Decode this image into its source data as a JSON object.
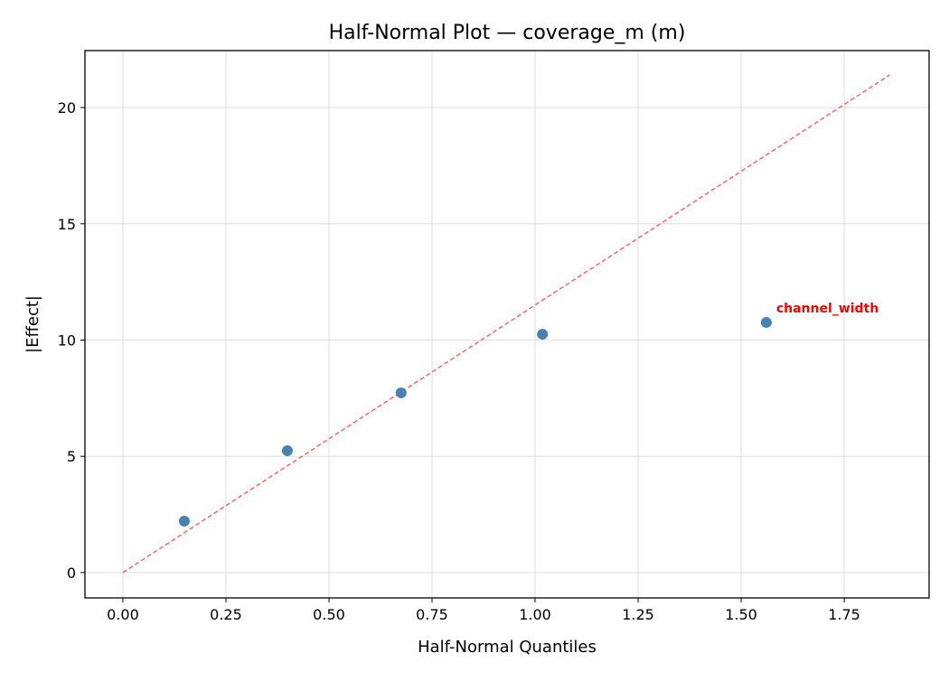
{
  "chart_data": {
    "type": "scatter",
    "title": "Half-Normal Plot — coverage_m (m)",
    "xlabel": "Half-Normal Quantiles",
    "ylabel": "|Effect|",
    "xlim": [
      -0.092,
      1.956
    ],
    "ylim": [
      -1.09,
      22.45
    ],
    "xticks": [
      0.0,
      0.25,
      0.5,
      0.75,
      1.0,
      1.25,
      1.5,
      1.75
    ],
    "xtick_labels": [
      "0.00",
      "0.25",
      "0.50",
      "0.75",
      "1.00",
      "1.25",
      "1.50",
      "1.75"
    ],
    "yticks": [
      0,
      5,
      10,
      15,
      20
    ],
    "ytick_labels": [
      "0",
      "5",
      "10",
      "15",
      "20"
    ],
    "grid": true,
    "points": [
      {
        "x": 0.149,
        "y": 2.21
      },
      {
        "x": 0.399,
        "y": 5.24
      },
      {
        "x": 0.675,
        "y": 7.73
      },
      {
        "x": 1.018,
        "y": 10.25
      },
      {
        "x": 1.561,
        "y": 10.76,
        "label": "channel_width"
      }
    ],
    "reference_line": {
      "x": [
        0,
        1.86
      ],
      "y": [
        0,
        21.4
      ],
      "style": "dashed"
    },
    "colors": {
      "points": "#4682b4",
      "reference_line": "#ff6666",
      "annotation": "#ff0000"
    }
  }
}
